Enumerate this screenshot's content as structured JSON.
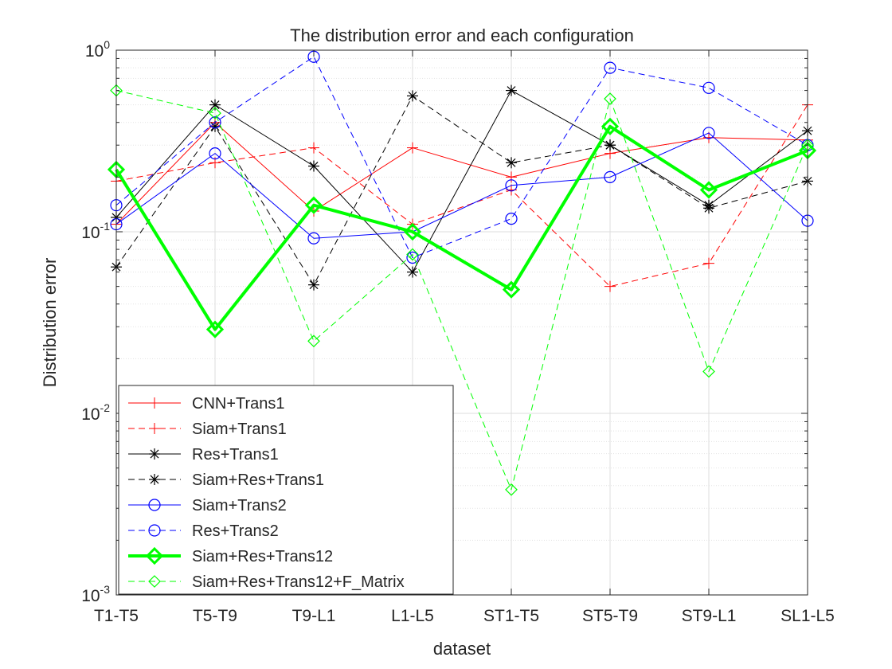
{
  "chart_data": {
    "type": "line",
    "title": "The distribution error and each configuration",
    "xlabel": "dataset",
    "ylabel": "Distribution error",
    "yscale": "log",
    "ylim": [
      0.001,
      1
    ],
    "grid": true,
    "minor_grid": true,
    "legend_position": "bottom-left",
    "categories": [
      "T1-T5",
      "T5-T9",
      "T9-L1",
      "L1-L5",
      "ST1-T5",
      "ST5-T9",
      "ST9-L1",
      "SL1-L5"
    ],
    "ytick_labels": [
      {
        "base": "10",
        "exp": "-3",
        "value": 0.001
      },
      {
        "base": "10",
        "exp": "-2",
        "value": 0.01
      },
      {
        "base": "10",
        "exp": "-1",
        "value": 0.1
      },
      {
        "base": "10",
        "exp": "0",
        "value": 1
      }
    ],
    "series": [
      {
        "name": "CNN+Trans1",
        "color": "#ff0000",
        "dash": "solid",
        "marker": "plus",
        "width": 1,
        "values": [
          0.11,
          0.4,
          0.13,
          0.29,
          0.2,
          0.27,
          0.33,
          0.32
        ]
      },
      {
        "name": "Siam+Trans1",
        "color": "#ff0000",
        "dash": "dashed",
        "marker": "plus",
        "width": 1,
        "values": [
          0.19,
          0.24,
          0.29,
          0.11,
          0.17,
          0.05,
          0.067,
          0.5
        ]
      },
      {
        "name": "Res+Trans1",
        "color": "#000000",
        "dash": "solid",
        "marker": "asterisk",
        "width": 1,
        "values": [
          0.12,
          0.5,
          0.23,
          0.06,
          0.6,
          0.3,
          0.14,
          0.36
        ]
      },
      {
        "name": "Siam+Res+Trans1",
        "color": "#000000",
        "dash": "dashed",
        "marker": "asterisk",
        "width": 1,
        "values": [
          0.064,
          0.38,
          0.051,
          0.56,
          0.24,
          0.3,
          0.135,
          0.19
        ]
      },
      {
        "name": "Siam+Trans2",
        "color": "#0000ff",
        "dash": "solid",
        "marker": "circle",
        "width": 1,
        "values": [
          0.11,
          0.27,
          0.092,
          0.1,
          0.18,
          0.2,
          0.35,
          0.115
        ]
      },
      {
        "name": "Res+Trans2",
        "color": "#0000ff",
        "dash": "dashed",
        "marker": "circle",
        "width": 1,
        "values": [
          0.14,
          0.4,
          0.92,
          0.072,
          0.118,
          0.8,
          0.62,
          0.3
        ]
      },
      {
        "name": "Siam+Res+Trans12",
        "color": "#00ff00",
        "dash": "solid",
        "marker": "diamond",
        "width": 4,
        "values": [
          0.22,
          0.029,
          0.14,
          0.1,
          0.048,
          0.38,
          0.17,
          0.28
        ]
      },
      {
        "name": "Siam+Res+Trans12+F_Matrix",
        "color": "#00ff00",
        "dash": "dashed",
        "marker": "diamond",
        "width": 1,
        "values": [
          0.6,
          0.45,
          0.025,
          0.075,
          0.0038,
          0.54,
          0.017,
          0.3
        ]
      }
    ]
  }
}
